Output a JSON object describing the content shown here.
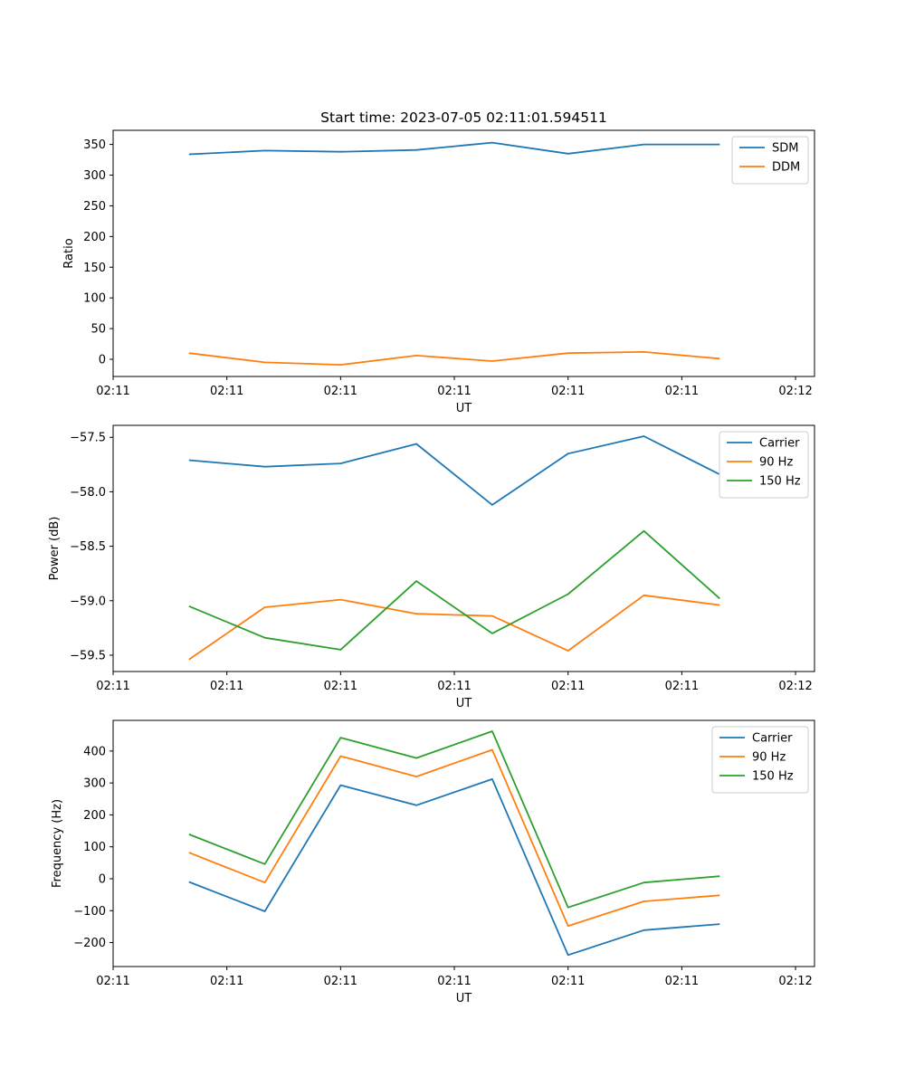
{
  "colors": {
    "blue": "#1f77b4",
    "orange": "#ff7f0e",
    "green": "#2ca02c"
  },
  "chart_data": [
    {
      "type": "line",
      "title": "Start time: 2023-07-05 02:11:01.594511",
      "xlabel": "UT",
      "ylabel": "Ratio",
      "x": [
        1,
        2,
        3,
        4,
        5,
        6,
        7,
        8
      ],
      "xlim": [
        0,
        9.25
      ],
      "xticks": [
        0,
        1.5,
        3,
        4.5,
        6,
        7.5,
        9
      ],
      "xtick_labels": [
        "02:11",
        "02:11",
        "02:11",
        "02:11",
        "02:11",
        "02:11",
        "02:12"
      ],
      "ylim": [
        -28,
        373
      ],
      "yticks": [
        0,
        50,
        100,
        150,
        200,
        250,
        300,
        350
      ],
      "ytick_labels": [
        "0",
        "50",
        "100",
        "150",
        "200",
        "250",
        "300",
        "350"
      ],
      "legend_loc": "top-right",
      "series": [
        {
          "name": "SDM",
          "color": "#1f77b4",
          "values": [
            334,
            340,
            338,
            341,
            353,
            335,
            350,
            350
          ]
        },
        {
          "name": "DDM",
          "color": "#ff7f0e",
          "values": [
            10,
            -5,
            -9,
            6,
            -3,
            10,
            12,
            1
          ]
        }
      ]
    },
    {
      "type": "line",
      "title": "",
      "xlabel": "UT",
      "ylabel": "Power (dB)",
      "x": [
        1,
        2,
        3,
        4,
        5,
        6,
        7,
        8
      ],
      "xlim": [
        0,
        9.25
      ],
      "xticks": [
        0,
        1.5,
        3,
        4.5,
        6,
        7.5,
        9
      ],
      "xtick_labels": [
        "02:11",
        "02:11",
        "02:11",
        "02:11",
        "02:11",
        "02:11",
        "02:12"
      ],
      "ylim": [
        -59.65,
        -57.39
      ],
      "yticks": [
        -59.5,
        -59.0,
        -58.5,
        -58.0,
        -57.5
      ],
      "ytick_labels": [
        "−59.5",
        "−59.0",
        "−58.5",
        "−58.0",
        "−57.5"
      ],
      "legend_loc": "top-right",
      "series": [
        {
          "name": "Carrier",
          "color": "#1f77b4",
          "values": [
            -57.71,
            -57.77,
            -57.74,
            -57.56,
            -58.12,
            -57.65,
            -57.49,
            -57.84
          ]
        },
        {
          "name": "90 Hz",
          "color": "#ff7f0e",
          "values": [
            -59.54,
            -59.06,
            -58.99,
            -59.12,
            -59.14,
            -59.46,
            -58.95,
            -59.04
          ]
        },
        {
          "name": "150 Hz",
          "color": "#2ca02c",
          "values": [
            -59.05,
            -59.34,
            -59.45,
            -58.82,
            -59.3,
            -58.94,
            -58.36,
            -58.98
          ]
        }
      ]
    },
    {
      "type": "line",
      "title": "",
      "xlabel": "UT",
      "ylabel": "Frequency (Hz)",
      "x": [
        1,
        2,
        3,
        4,
        5,
        6,
        7,
        8
      ],
      "xlim": [
        0,
        9.25
      ],
      "xticks": [
        0,
        1.5,
        3,
        4.5,
        6,
        7.5,
        9
      ],
      "xtick_labels": [
        "02:11",
        "02:11",
        "02:11",
        "02:11",
        "02:11",
        "02:11",
        "02:12"
      ],
      "ylim": [
        -275,
        496
      ],
      "yticks": [
        -200,
        -100,
        0,
        100,
        200,
        300,
        400
      ],
      "ytick_labels": [
        "−200",
        "−100",
        "0",
        "100",
        "200",
        "300",
        "400"
      ],
      "legend_loc": "top-right",
      "series": [
        {
          "name": "Carrier",
          "color": "#1f77b4",
          "values": [
            -10,
            -102,
            293,
            230,
            312,
            -239,
            -161,
            -142
          ]
        },
        {
          "name": "90 Hz",
          "color": "#ff7f0e",
          "values": [
            82,
            -12,
            384,
            320,
            404,
            -148,
            -71,
            -52
          ]
        },
        {
          "name": "150 Hz",
          "color": "#2ca02c",
          "values": [
            139,
            46,
            442,
            378,
            462,
            -90,
            -12,
            8
          ]
        }
      ]
    }
  ]
}
